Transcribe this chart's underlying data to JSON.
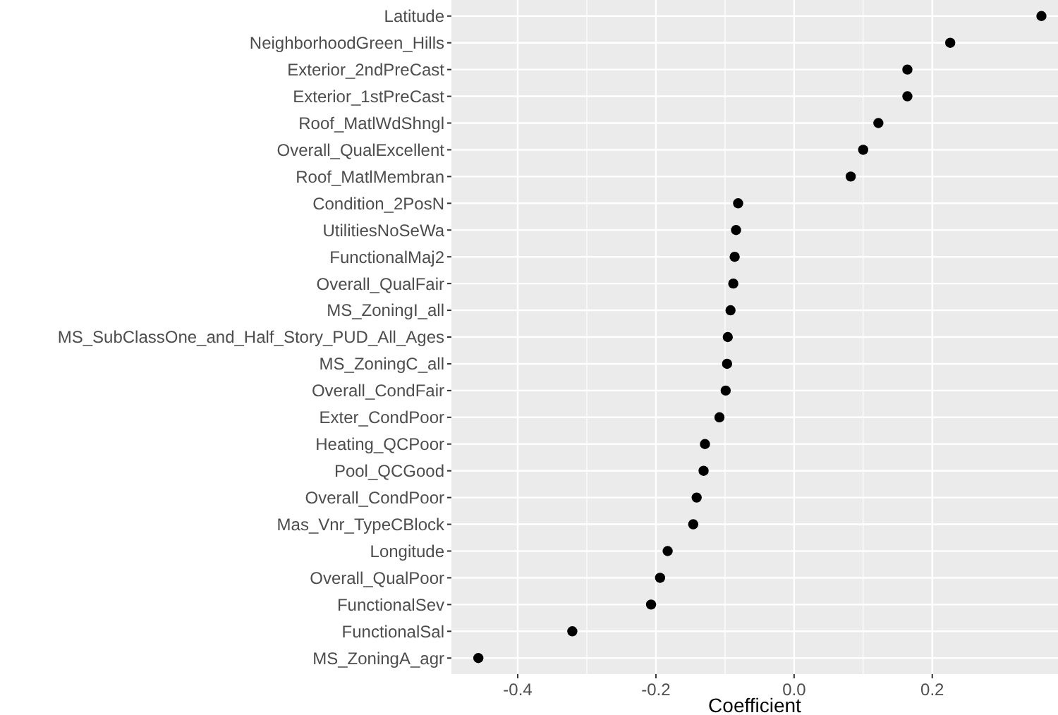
{
  "chart_data": {
    "type": "scatter",
    "orientation": "horizontal",
    "xlabel": "Coefficient",
    "categories": [
      "Latitude",
      "NeighborhoodGreen_Hills",
      "Exterior_2ndPreCast",
      "Exterior_1stPreCast",
      "Roof_MatlWdShngl",
      "Overall_QualExcellent",
      "Roof_MatlMembran",
      "Condition_2PosN",
      "UtilitiesNoSeWa",
      "FunctionalMaj2",
      "Overall_QualFair",
      "MS_ZoningI_all",
      "MS_SubClassOne_and_Half_Story_PUD_All_Ages",
      "MS_ZoningC_all",
      "Overall_CondFair",
      "Exter_CondPoor",
      "Heating_QCPoor",
      "Pool_QCGood",
      "Overall_CondPoor",
      "Mas_Vnr_TypeCBlock",
      "Longitude",
      "Overall_QualPoor",
      "FunctionalSev",
      "FunctionalSal",
      "MS_ZoningA_agr"
    ],
    "values": [
      0.358,
      0.226,
      0.164,
      0.164,
      0.122,
      0.1,
      0.082,
      -0.081,
      -0.084,
      -0.086,
      -0.088,
      -0.092,
      -0.096,
      -0.097,
      -0.099,
      -0.108,
      -0.129,
      -0.131,
      -0.141,
      -0.146,
      -0.183,
      -0.194,
      -0.207,
      -0.321,
      -0.457
    ],
    "color": "#000000",
    "marker": "circle",
    "xlim": [
      -0.496,
      0.382
    ],
    "xticks": [
      {
        "value": -0.4,
        "label": "-0.4"
      },
      {
        "value": -0.2,
        "label": "-0.2"
      },
      {
        "value": 0,
        "label": "0.0"
      },
      {
        "value": 0.2,
        "label": "0.2"
      }
    ],
    "grid": true
  }
}
